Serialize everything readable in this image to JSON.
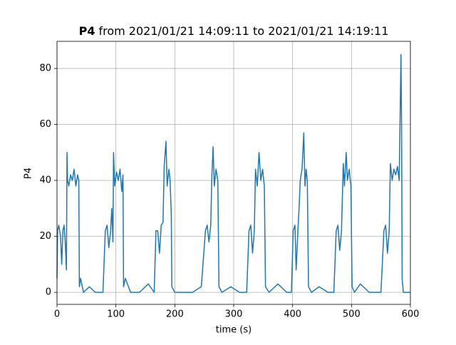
{
  "chart_data": {
    "type": "line",
    "title_name": "P4",
    "title": "from 2021/01/21 14:09:11 to 2021/01/21 14:19:11",
    "xlabel": "time (s)",
    "ylabel": "P4",
    "xlim": [
      0,
      600
    ],
    "ylim": [
      -4.3,
      89.7
    ],
    "xticks": [
      0,
      100,
      200,
      300,
      400,
      500,
      600
    ],
    "yticks": [
      0,
      20,
      40,
      60,
      80
    ],
    "grid": true,
    "series": [
      {
        "color": "#1f77b4",
        "x": [
          0,
          1,
          3,
          6,
          8,
          10,
          12,
          14,
          16,
          17,
          18,
          20,
          23,
          26,
          29,
          32,
          35,
          37,
          38,
          40,
          45,
          55,
          65,
          78,
          82,
          85,
          88,
          91,
          93,
          95,
          96,
          98,
          101,
          104,
          107,
          110,
          112,
          113,
          116,
          125,
          140,
          155,
          165,
          168,
          171,
          174,
          177,
          180,
          182,
          185,
          187,
          190,
          192,
          194,
          195,
          200,
          215,
          230,
          245,
          252,
          255,
          258,
          261,
          263,
          265,
          267,
          270,
          273,
          275,
          280,
          295,
          310,
          322,
          326,
          329,
          332,
          335,
          337,
          340,
          343,
          346,
          349,
          352,
          354,
          360,
          375,
          390,
          398,
          401,
          404,
          406,
          409,
          411,
          413,
          416,
          419,
          421,
          423,
          425,
          427,
          432,
          445,
          460,
          470,
          474,
          477,
          480,
          483,
          486,
          488,
          491,
          493,
          496,
          499,
          501,
          505,
          515,
          530,
          550,
          555,
          558,
          561,
          564,
          566,
          569,
          572,
          575,
          578,
          581,
          583,
          584,
          585,
          586,
          588,
          600
        ],
        "values": [
          5,
          22,
          24,
          20,
          10,
          22,
          24,
          18,
          8,
          50,
          40,
          38,
          42,
          40,
          44,
          38,
          42,
          40,
          2,
          5,
          0,
          2,
          0,
          0,
          22,
          24,
          16,
          22,
          30,
          18,
          50,
          38,
          43,
          40,
          44,
          36,
          42,
          2,
          5,
          0,
          0,
          3,
          0,
          22,
          22,
          14,
          24,
          25,
          45,
          54,
          38,
          44,
          40,
          28,
          2,
          0,
          0,
          0,
          2,
          22,
          24,
          18,
          24,
          42,
          52,
          38,
          44,
          40,
          2,
          0,
          2,
          0,
          0,
          22,
          24,
          14,
          22,
          44,
          38,
          50,
          40,
          44,
          38,
          2,
          0,
          3,
          0,
          0,
          22,
          24,
          8,
          22,
          30,
          40,
          44,
          57,
          38,
          44,
          40,
          2,
          0,
          2,
          0,
          0,
          22,
          24,
          15,
          22,
          46,
          38,
          50,
          40,
          44,
          38,
          2,
          0,
          3,
          0,
          0,
          22,
          24,
          14,
          22,
          46,
          40,
          44,
          42,
          45,
          40,
          70,
          85,
          60,
          5,
          0,
          0
        ]
      }
    ]
  }
}
